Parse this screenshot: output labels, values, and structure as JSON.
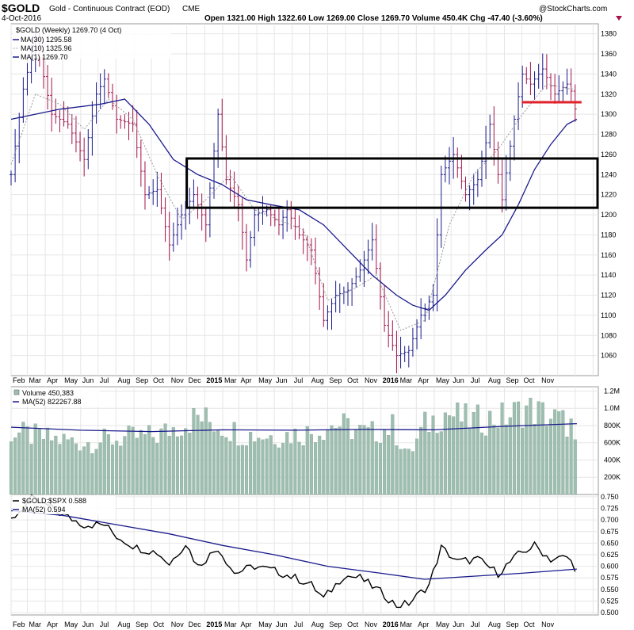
{
  "header": {
    "symbol": "$GOLD",
    "name": "Gold - Continuous Contract (EOD)",
    "exchange": "CME",
    "date": "4-Oct-2016",
    "quote_line": "Open 1321.00   High 1322.60   Low 1269.00   Close 1269.70   Volume 450.4K   Chg -47.40 (-3.60%)",
    "watermark": "@StockCharts.com"
  },
  "colors": {
    "ma_line": "#1a1a8c",
    "ma_dotted": "#999999",
    "up_bar": "#1a1a8c",
    "down_bar": "#a3124a",
    "volume": "#9ebeb0",
    "volume_ma": "#1a1a8c",
    "ratio": "#000000",
    "ratio_ma": "#1a1a8c",
    "resistance": "#e0202a",
    "box": "#000000",
    "grid": "#e6e6e6"
  },
  "legends": {
    "price": [
      "$GOLD (Weekly) 1269.70 (4 Oct)",
      "MA(30) 1295.58",
      "MA(10) 1325.96",
      "MA(1) 1269.70"
    ],
    "volume": [
      "Volume 450,383",
      "MA(52) 822267.88"
    ],
    "ratio": [
      "$GOLD:$SPX 0.588",
      "MA(52) 0.594"
    ]
  },
  "chart_data": [
    {
      "type": "line",
      "panel": "price",
      "title": "$GOLD (Weekly)",
      "x_range": [
        "2014-02-01",
        "2016-11-10"
      ],
      "ylim": [
        1040,
        1390
      ],
      "yticks": [
        1060,
        1080,
        1100,
        1120,
        1140,
        1160,
        1180,
        1200,
        1220,
        1240,
        1260,
        1280,
        1300,
        1320,
        1340,
        1360,
        1380
      ],
      "x_labels": [
        "Feb",
        "Mar",
        "Apr",
        "May",
        "Jun",
        "Jul",
        "Aug",
        "Sep",
        "Oct",
        "Nov",
        "Dec",
        "2015",
        "Mar",
        "Apr",
        "May",
        "Jun",
        "Jul",
        "Aug",
        "Sep",
        "Oct",
        "Nov",
        "2016",
        "Mar",
        "Apr",
        "May",
        "Jun",
        "Jul",
        "Aug",
        "Sep",
        "Oct",
        "Nov"
      ],
      "close_points": [
        [
          "2014-02-01",
          1240
        ],
        [
          "2014-02-22",
          1325
        ],
        [
          "2014-03-15",
          1375
        ],
        [
          "2014-04-12",
          1300
        ],
        [
          "2014-05-10",
          1290
        ],
        [
          "2014-06-07",
          1255
        ],
        [
          "2014-06-28",
          1320
        ],
        [
          "2014-07-12",
          1335
        ],
        [
          "2014-08-02",
          1295
        ],
        [
          "2014-08-30",
          1290
        ],
        [
          "2014-09-20",
          1220
        ],
        [
          "2014-10-11",
          1225
        ],
        [
          "2014-11-01",
          1170
        ],
        [
          "2014-11-22",
          1200
        ],
        [
          "2014-12-13",
          1220
        ],
        [
          "2015-01-03",
          1190
        ],
        [
          "2015-01-24",
          1300
        ],
        [
          "2015-02-07",
          1235
        ],
        [
          "2015-02-28",
          1210
        ],
        [
          "2015-03-14",
          1155
        ],
        [
          "2015-03-28",
          1200
        ],
        [
          "2015-04-18",
          1205
        ],
        [
          "2015-05-09",
          1190
        ],
        [
          "2015-05-23",
          1205
        ],
        [
          "2015-06-13",
          1180
        ],
        [
          "2015-07-04",
          1165
        ],
        [
          "2015-07-25",
          1095
        ],
        [
          "2015-08-15",
          1120
        ],
        [
          "2015-09-05",
          1125
        ],
        [
          "2015-09-26",
          1145
        ],
        [
          "2015-10-17",
          1175
        ],
        [
          "2015-11-07",
          1090
        ],
        [
          "2015-11-28",
          1060
        ],
        [
          "2015-12-19",
          1065
        ],
        [
          "2016-01-09",
          1100
        ],
        [
          "2016-01-30",
          1120
        ],
        [
          "2016-02-13",
          1240
        ],
        [
          "2016-03-05",
          1260
        ],
        [
          "2016-03-26",
          1220
        ],
        [
          "2016-04-16",
          1235
        ],
        [
          "2016-05-07",
          1290
        ],
        [
          "2016-05-28",
          1215
        ],
        [
          "2016-06-18",
          1295
        ],
        [
          "2016-07-02",
          1340
        ],
        [
          "2016-07-16",
          1330
        ],
        [
          "2016-08-06",
          1345
        ],
        [
          "2016-08-27",
          1320
        ],
        [
          "2016-09-17",
          1330
        ],
        [
          "2016-09-30",
          1317
        ],
        [
          "2016-10-04",
          1270
        ]
      ],
      "ma30_points": [
        [
          "2014-02-01",
          1295
        ],
        [
          "2014-04-26",
          1305
        ],
        [
          "2014-07-05",
          1310
        ],
        [
          "2014-08-16",
          1315
        ],
        [
          "2014-09-27",
          1290
        ],
        [
          "2014-11-08",
          1255
        ],
        [
          "2014-12-20",
          1240
        ],
        [
          "2015-01-31",
          1230
        ],
        [
          "2015-03-14",
          1215
        ],
        [
          "2015-04-25",
          1210
        ],
        [
          "2015-06-13",
          1205
        ],
        [
          "2015-07-25",
          1190
        ],
        [
          "2015-09-05",
          1165
        ],
        [
          "2015-10-17",
          1140
        ],
        [
          "2015-11-28",
          1120
        ],
        [
          "2015-12-26",
          1110
        ],
        [
          "2016-01-23",
          1105
        ],
        [
          "2016-02-20",
          1120
        ],
        [
          "2016-03-26",
          1145
        ],
        [
          "2016-04-30",
          1165
        ],
        [
          "2016-05-28",
          1180
        ],
        [
          "2016-06-25",
          1210
        ],
        [
          "2016-07-23",
          1245
        ],
        [
          "2016-08-20",
          1270
        ],
        [
          "2016-09-17",
          1290
        ],
        [
          "2016-10-04",
          1295
        ]
      ],
      "ma10_points": [
        [
          "2014-02-01",
          1250
        ],
        [
          "2014-03-15",
          1320
        ],
        [
          "2014-04-26",
          1310
        ],
        [
          "2014-06-07",
          1285
        ],
        [
          "2014-07-19",
          1315
        ],
        [
          "2014-08-30",
          1295
        ],
        [
          "2014-10-11",
          1240
        ],
        [
          "2014-11-22",
          1195
        ],
        [
          "2015-01-03",
          1215
        ],
        [
          "2015-02-14",
          1240
        ],
        [
          "2015-03-28",
          1205
        ],
        [
          "2015-05-09",
          1195
        ],
        [
          "2015-06-20",
          1185
        ],
        [
          "2015-08-01",
          1115
        ],
        [
          "2015-09-12",
          1125
        ],
        [
          "2015-10-24",
          1140
        ],
        [
          "2015-12-05",
          1085
        ],
        [
          "2016-01-16",
          1095
        ],
        [
          "2016-02-27",
          1190
        ],
        [
          "2016-04-09",
          1240
        ],
        [
          "2016-05-21",
          1265
        ],
        [
          "2016-07-02",
          1300
        ],
        [
          "2016-08-13",
          1330
        ],
        [
          "2016-09-24",
          1325
        ],
        [
          "2016-10-04",
          1326
        ]
      ],
      "resistance_level": 1312,
      "resistance_range": [
        "2016-07-01",
        "2016-10-12"
      ],
      "box": {
        "x_start": "2014-12-01",
        "x_end": "2016-11-10",
        "y_low": 1207,
        "y_high": 1256
      }
    },
    {
      "type": "bar",
      "panel": "volume",
      "title": "Volume",
      "ylim": [
        0,
        1250000
      ],
      "yticks": [
        200000,
        400000,
        600000,
        800000,
        1000000,
        1200000
      ],
      "ytick_labels": [
        "200K",
        "400K",
        "600K",
        "800K",
        "1.0M",
        "1.2M"
      ],
      "volume_points": [
        [
          "2014-02-01",
          720000
        ],
        [
          "2014-04-05",
          650000
        ],
        [
          "2014-06-07",
          600000
        ],
        [
          "2014-08-09",
          650000
        ],
        [
          "2014-10-11",
          680000
        ],
        [
          "2014-11-22",
          820000
        ],
        [
          "2014-12-20",
          900000
        ],
        [
          "2015-01-17",
          830000
        ],
        [
          "2015-03-07",
          700000
        ],
        [
          "2015-05-02",
          680000
        ],
        [
          "2015-07-04",
          720000
        ],
        [
          "2015-08-15",
          820000
        ],
        [
          "2015-10-10",
          700000
        ],
        [
          "2015-11-21",
          780000
        ],
        [
          "2015-12-19",
          450000
        ],
        [
          "2016-01-16",
          800000
        ],
        [
          "2016-02-20",
          950000
        ],
        [
          "2016-04-02",
          850000
        ],
        [
          "2016-06-04",
          900000
        ],
        [
          "2016-07-09",
          1000000
        ],
        [
          "2016-08-20",
          900000
        ],
        [
          "2016-09-24",
          800000
        ],
        [
          "2016-10-04",
          450000
        ]
      ],
      "ma52_points": [
        [
          "2014-02-01",
          780000
        ],
        [
          "2014-06-01",
          745000
        ],
        [
          "2014-10-01",
          730000
        ],
        [
          "2015-02-01",
          750000
        ],
        [
          "2015-06-01",
          745000
        ],
        [
          "2015-10-01",
          755000
        ],
        [
          "2016-02-01",
          750000
        ],
        [
          "2016-06-01",
          790000
        ],
        [
          "2016-10-04",
          822000
        ]
      ]
    },
    {
      "type": "line",
      "panel": "ratio",
      "title": "$GOLD:$SPX",
      "ylim": [
        0.495,
        0.755
      ],
      "yticks": [
        0.5,
        0.525,
        0.55,
        0.575,
        0.6,
        0.625,
        0.65,
        0.675,
        0.7,
        0.725,
        0.75
      ],
      "ratio_points": [
        [
          "2014-02-01",
          0.7
        ],
        [
          "2014-03-08",
          0.745
        ],
        [
          "2014-04-05",
          0.73
        ],
        [
          "2014-05-03",
          0.71
        ],
        [
          "2014-06-07",
          0.69
        ],
        [
          "2014-07-12",
          0.69
        ],
        [
          "2014-08-02",
          0.665
        ],
        [
          "2014-09-06",
          0.64
        ],
        [
          "2014-10-11",
          0.63
        ],
        [
          "2014-11-01",
          0.605
        ],
        [
          "2014-11-29",
          0.65
        ],
        [
          "2014-12-20",
          0.6
        ],
        [
          "2015-01-24",
          0.64
        ],
        [
          "2015-02-21",
          0.585
        ],
        [
          "2015-03-28",
          0.6
        ],
        [
          "2015-05-02",
          0.59
        ],
        [
          "2015-06-06",
          0.575
        ],
        [
          "2015-07-04",
          0.56
        ],
        [
          "2015-07-25",
          0.53
        ],
        [
          "2015-08-29",
          0.58
        ],
        [
          "2015-09-26",
          0.575
        ],
        [
          "2015-10-31",
          0.545
        ],
        [
          "2015-11-28",
          0.515
        ],
        [
          "2015-12-19",
          0.52
        ],
        [
          "2016-01-23",
          0.56
        ],
        [
          "2016-02-13",
          0.64
        ],
        [
          "2016-03-12",
          0.61
        ],
        [
          "2016-04-16",
          0.615
        ],
        [
          "2016-05-21",
          0.585
        ],
        [
          "2016-06-25",
          0.625
        ],
        [
          "2016-07-23",
          0.645
        ],
        [
          "2016-08-20",
          0.615
        ],
        [
          "2016-09-17",
          0.62
        ],
        [
          "2016-09-30",
          0.6
        ],
        [
          "2016-10-04",
          0.588
        ]
      ],
      "ma52_points": [
        [
          "2014-02-01",
          0.72
        ],
        [
          "2014-05-01",
          0.71
        ],
        [
          "2014-08-01",
          0.69
        ],
        [
          "2014-11-01",
          0.67
        ],
        [
          "2015-02-01",
          0.645
        ],
        [
          "2015-05-01",
          0.625
        ],
        [
          "2015-08-01",
          0.6
        ],
        [
          "2015-11-01",
          0.585
        ],
        [
          "2016-01-15",
          0.572
        ],
        [
          "2016-04-01",
          0.578
        ],
        [
          "2016-07-01",
          0.585
        ],
        [
          "2016-10-04",
          0.594
        ]
      ]
    }
  ]
}
